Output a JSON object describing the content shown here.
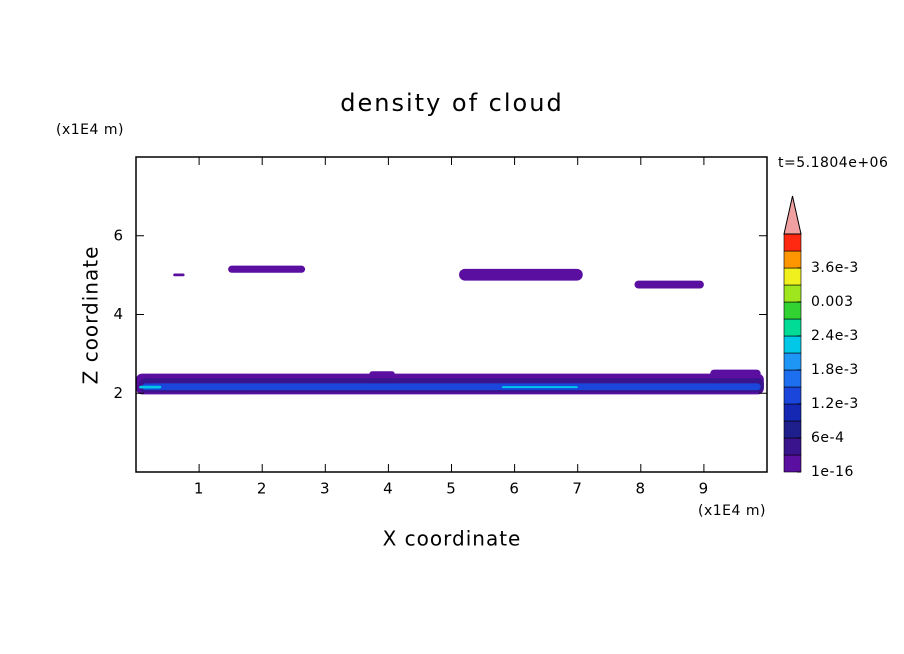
{
  "chart_data": {
    "type": "contour",
    "title": "density of cloud",
    "xlabel": "X coordinate",
    "ylabel": "Z coordinate",
    "xunit": "(x1E4 m)",
    "yunit": "(x1E4 m)",
    "time_label": "t=5.1804e+06",
    "xlim": [
      0,
      10
    ],
    "ylim": [
      0,
      8
    ],
    "xticks": [
      1,
      2,
      3,
      4,
      5,
      6,
      7,
      8,
      9
    ],
    "yticks": [
      2,
      4,
      6
    ],
    "patches": [
      {
        "x": [
          0.59,
          0.77
        ],
        "y": [
          4.97,
          5.04
        ],
        "value": 1e-16
      },
      {
        "x": [
          1.46,
          2.68
        ],
        "y": [
          5.06,
          5.24
        ],
        "value": 1e-16
      },
      {
        "x": [
          5.12,
          7.08
        ],
        "y": [
          4.86,
          5.16
        ],
        "value": 1e-16
      },
      {
        "x": [
          7.9,
          9.0
        ],
        "y": [
          4.66,
          4.86
        ],
        "value": 1e-16
      },
      {
        "x": [
          0.0,
          9.95
        ],
        "y": [
          1.97,
          2.5
        ],
        "value": 1e-16
      },
      {
        "x": [
          3.7,
          4.1
        ],
        "y": [
          2.43,
          2.56
        ],
        "value": 1e-16
      },
      {
        "x": [
          9.1,
          9.9
        ],
        "y": [
          2.4,
          2.6
        ],
        "value": 1e-16
      },
      {
        "x": [
          0.05,
          9.95
        ],
        "y": [
          2.02,
          2.38
        ],
        "value": 0.0006
      },
      {
        "x": [
          0.1,
          9.9
        ],
        "y": [
          2.08,
          2.25
        ],
        "value": 0.0015
      },
      {
        "x": [
          0.05,
          0.4
        ],
        "y": [
          2.12,
          2.19
        ],
        "value": 0.0024
      },
      {
        "x": [
          5.8,
          7.0
        ],
        "y": [
          2.13,
          2.18
        ],
        "value": 0.0024
      }
    ],
    "colorbar": {
      "clim": [
        1e-16,
        0.0042
      ],
      "colors": [
        "#5a0fa0",
        "#3a148c",
        "#1e1e8c",
        "#1428b4",
        "#1a46dc",
        "#1e6ef0",
        "#1e96f5",
        "#00c8e6",
        "#00dc96",
        "#32d232",
        "#a0e61e",
        "#f0f01e",
        "#ff9600",
        "#ff2810"
      ],
      "over_color": "#f0a0a0",
      "ticks": [
        {
          "value": 1e-16,
          "label": "1e-16"
        },
        {
          "value": 0.0006,
          "label": "6e-4"
        },
        {
          "value": 0.0012,
          "label": "1.2e-3"
        },
        {
          "value": 0.0018,
          "label": "1.8e-3"
        },
        {
          "value": 0.0024,
          "label": "2.4e-3"
        },
        0.003,
        {
          "value": 0.0036,
          "label": "3.6e-3"
        }
      ]
    }
  }
}
